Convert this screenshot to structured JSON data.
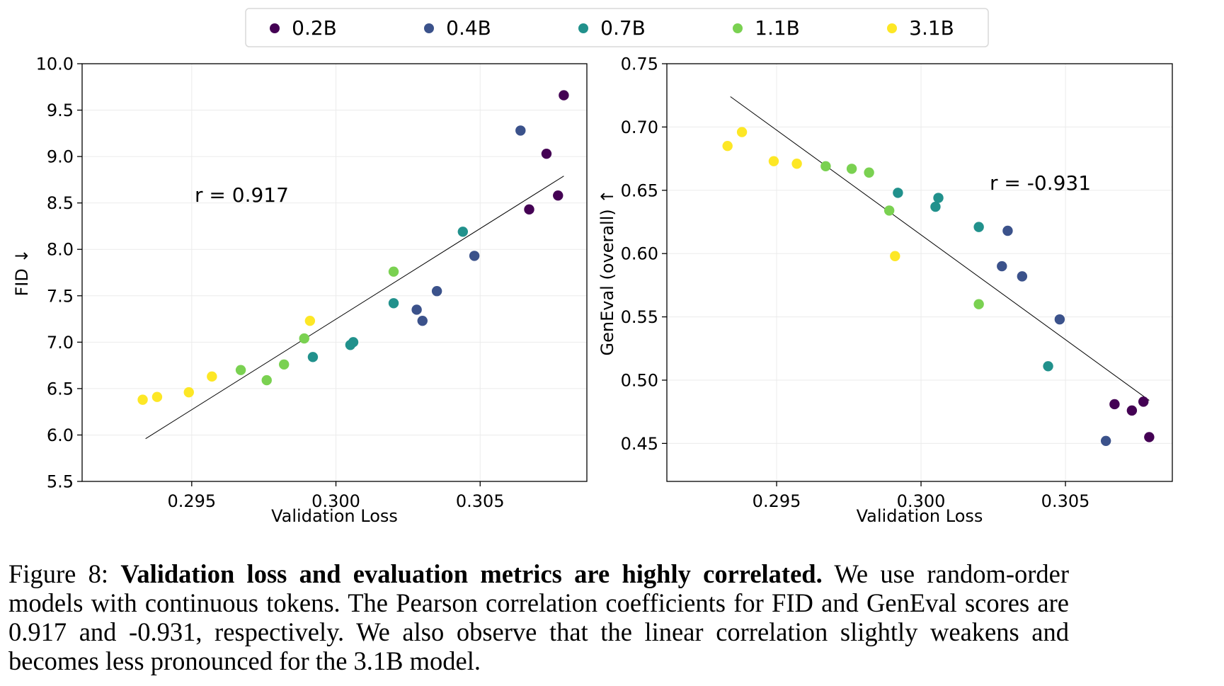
{
  "legend": {
    "items": [
      {
        "label": "0.2B",
        "color": "#440154"
      },
      {
        "label": "0.4B",
        "color": "#3b528b"
      },
      {
        "label": "0.7B",
        "color": "#21918c"
      },
      {
        "label": "1.1B",
        "color": "#7ad151"
      },
      {
        "label": "3.1B",
        "color": "#fde725"
      }
    ]
  },
  "chart_data": [
    {
      "type": "scatter",
      "title": "",
      "xlabel": "Validation Loss",
      "ylabel": "FID ↓",
      "xlim": [
        0.2912,
        0.3087
      ],
      "ylim": [
        5.5,
        10.0
      ],
      "xticks": [
        0.295,
        0.3,
        0.305
      ],
      "xtick_labels": [
        "0.295",
        "0.300",
        "0.305"
      ],
      "yticks": [
        5.5,
        6.0,
        6.5,
        7.0,
        7.5,
        8.0,
        8.5,
        9.0,
        9.5,
        10.0
      ],
      "ytick_labels": [
        "5.5",
        "6.0",
        "6.5",
        "7.0",
        "7.5",
        "8.0",
        "8.5",
        "9.0",
        "9.5",
        "10.0"
      ],
      "grid": true,
      "annotation": "r = 0.917",
      "fit_line": [
        [
          0.2934,
          5.96
        ],
        [
          0.3079,
          8.79
        ]
      ],
      "series": [
        {
          "name": "0.2B",
          "x": [
            0.3079,
            0.3073,
            0.3067,
            0.3077
          ],
          "y": [
            9.66,
            9.03,
            8.43,
            8.58
          ]
        },
        {
          "name": "0.4B",
          "x": [
            0.3064,
            0.3048,
            0.3035,
            0.3028,
            0.303
          ],
          "y": [
            9.28,
            7.93,
            7.55,
            7.35,
            7.23
          ]
        },
        {
          "name": "0.7B",
          "x": [
            0.3044,
            0.302,
            0.3006,
            0.3005,
            0.2992
          ],
          "y": [
            8.19,
            7.42,
            7.0,
            6.97,
            6.84
          ]
        },
        {
          "name": "1.1B",
          "x": [
            0.302,
            0.2989,
            0.2982,
            0.2976,
            0.2967
          ],
          "y": [
            7.76,
            7.04,
            6.76,
            6.59,
            6.7
          ]
        },
        {
          "name": "3.1B",
          "x": [
            0.2991,
            0.2957,
            0.2949,
            0.2938,
            0.2933
          ],
          "y": [
            7.23,
            6.63,
            6.46,
            6.41,
            6.38
          ]
        }
      ]
    },
    {
      "type": "scatter",
      "title": "",
      "xlabel": "Validation Loss",
      "ylabel": "GenEval (overall) ↑",
      "xlim": [
        0.2912,
        0.3087
      ],
      "ylim": [
        0.42,
        0.75
      ],
      "xticks": [
        0.295,
        0.3,
        0.305
      ],
      "xtick_labels": [
        "0.295",
        "0.300",
        "0.305"
      ],
      "yticks": [
        0.45,
        0.5,
        0.55,
        0.6,
        0.65,
        0.7,
        0.75
      ],
      "ytick_labels": [
        "0.45",
        "0.50",
        "0.55",
        "0.60",
        "0.65",
        "0.70",
        "0.75"
      ],
      "grid": true,
      "annotation": "r = -0.931",
      "fit_line": [
        [
          0.2934,
          0.724
        ],
        [
          0.3079,
          0.484
        ]
      ],
      "series": [
        {
          "name": "0.2B",
          "x": [
            0.3067,
            0.3073,
            0.3077,
            0.3079
          ],
          "y": [
            0.481,
            0.476,
            0.483,
            0.455
          ]
        },
        {
          "name": "0.4B",
          "x": [
            0.303,
            0.3028,
            0.3035,
            0.3048,
            0.3064
          ],
          "y": [
            0.618,
            0.59,
            0.582,
            0.548,
            0.452
          ]
        },
        {
          "name": "0.7B",
          "x": [
            0.2992,
            0.3005,
            0.3006,
            0.302,
            0.3044
          ],
          "y": [
            0.648,
            0.637,
            0.644,
            0.621,
            0.511
          ]
        },
        {
          "name": "1.1B",
          "x": [
            0.2967,
            0.2976,
            0.2982,
            0.2989,
            0.302
          ],
          "y": [
            0.669,
            0.667,
            0.664,
            0.634,
            0.56
          ]
        },
        {
          "name": "3.1B",
          "x": [
            0.2933,
            0.2938,
            0.2949,
            0.2957,
            0.2991
          ],
          "y": [
            0.685,
            0.696,
            0.673,
            0.671,
            0.598
          ]
        }
      ]
    }
  ],
  "caption": {
    "label": "Figure 8:",
    "bold": "Validation loss and evaluation metrics are highly correlated.",
    "text": "We use random-order models with continuous tokens. The Pearson correlation coefficients for FID and GenEval scores are 0.917 and -0.931, respectively. We also observe that the linear correlation slightly weakens and becomes less pronounced for the 3.1B model."
  }
}
